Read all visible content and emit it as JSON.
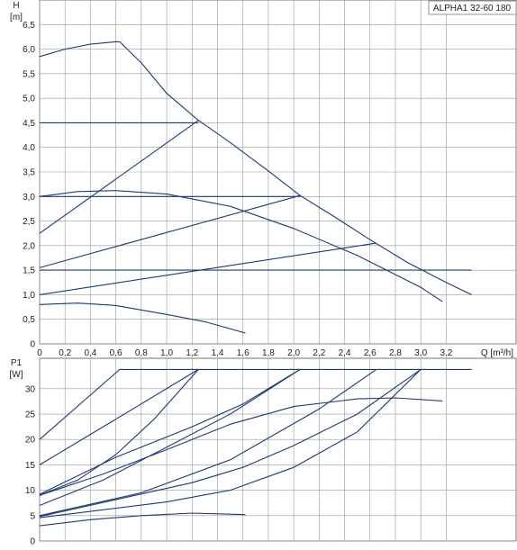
{
  "chart_data": [
    {
      "type": "line",
      "title": "ALPHA1 32-60 180",
      "ylabel_top": "H",
      "ylabel_unit": "[m]",
      "xlabel": "Q [m³/h]",
      "xlim": [
        0,
        3.75
      ],
      "ylim": [
        0,
        7
      ],
      "grid": true,
      "x_ticks": [
        "0",
        "0,2",
        "0,4",
        "0,6",
        "0,8",
        "1,0",
        "1,2",
        "1,4",
        "1,6",
        "1,8",
        "2,0",
        "2,2",
        "2,4",
        "2,6",
        "2,8",
        "3,0",
        "3,2"
      ],
      "x_tick_values": [
        0,
        0.2,
        0.4,
        0.6,
        0.8,
        1.0,
        1.2,
        1.4,
        1.6,
        1.8,
        2.0,
        2.2,
        2.4,
        2.6,
        2.8,
        3.0,
        3.2
      ],
      "y_ticks": [
        "0",
        "0,5",
        "1,0",
        "1,5",
        "2,0",
        "2,5",
        "3,0",
        "3,5",
        "4,0",
        "4,5",
        "5,0",
        "5,5",
        "6,0",
        "6,5"
      ],
      "y_tick_values": [
        0,
        0.5,
        1.0,
        1.5,
        2.0,
        2.5,
        3.0,
        3.5,
        4.0,
        4.5,
        5.0,
        5.5,
        6.0,
        6.5
      ],
      "series": [
        {
          "x": [
            0,
            0.2,
            0.4,
            0.6,
            0.63,
            0.8,
            1.0,
            1.25,
            1.5,
            1.8,
            2.05,
            2.3,
            2.6,
            2.9,
            3.2,
            3.4
          ],
          "y": [
            5.85,
            6.0,
            6.1,
            6.15,
            6.15,
            5.72,
            5.1,
            4.55,
            4.1,
            3.52,
            3.02,
            2.62,
            2.12,
            1.65,
            1.25,
            1.0
          ]
        },
        {
          "x": [
            0,
            1.25
          ],
          "y": [
            4.5,
            4.5
          ]
        },
        {
          "x": [
            0,
            1.25
          ],
          "y": [
            2.25,
            4.55
          ]
        },
        {
          "x": [
            0,
            2.05
          ],
          "y": [
            3.0,
            3.0
          ]
        },
        {
          "x": [
            0,
            2.05
          ],
          "y": [
            1.55,
            3.02
          ]
        },
        {
          "x": [
            0,
            3.4
          ],
          "y": [
            1.5,
            1.5
          ]
        },
        {
          "x": [
            0,
            2.65
          ],
          "y": [
            1.0,
            2.05
          ]
        },
        {
          "x": [
            0,
            0.3,
            0.6,
            1.0,
            1.5,
            2.0,
            2.5,
            3.0,
            3.17
          ],
          "y": [
            3.0,
            3.1,
            3.12,
            3.05,
            2.8,
            2.35,
            1.8,
            1.15,
            0.86
          ]
        },
        {
          "x": [
            0,
            0.3,
            0.6,
            1.0,
            1.3,
            1.62
          ],
          "y": [
            0.8,
            0.83,
            0.78,
            0.6,
            0.45,
            0.22
          ]
        }
      ]
    },
    {
      "type": "line",
      "ylabel_top": "P1",
      "ylabel_unit": "[W]",
      "xlim": [
        0,
        3.75
      ],
      "ylim": [
        0,
        36
      ],
      "grid": true,
      "y_ticks": [
        "0",
        "5",
        "10",
        "15",
        "20",
        "25",
        "30"
      ],
      "y_tick_values": [
        0,
        5,
        10,
        15,
        20,
        25,
        30
      ],
      "series": [
        {
          "x": [
            0.63,
            3.4
          ],
          "y": [
            33.8,
            33.8
          ]
        },
        {
          "x": [
            0,
            0.63
          ],
          "y": [
            20,
            33.8
          ]
        },
        {
          "x": [
            0,
            0.6,
            1.25
          ],
          "y": [
            15,
            24,
            33.8
          ]
        },
        {
          "x": [
            0,
            0.3,
            0.6,
            0.9,
            1.25
          ],
          "y": [
            9.0,
            12.0,
            17.0,
            24.0,
            33.8
          ]
        },
        {
          "x": [
            0,
            0.6,
            1.2,
            1.6,
            2.05
          ],
          "y": [
            9.2,
            16.5,
            22.5,
            27.0,
            33.8
          ]
        },
        {
          "x": [
            0,
            0.5,
            1.0,
            1.5,
            2.05
          ],
          "y": [
            7.0,
            12.0,
            18.5,
            25.0,
            33.8
          ]
        },
        {
          "x": [
            0,
            0.8,
            1.5,
            2.2,
            2.65
          ],
          "y": [
            5.0,
            9.5,
            16.0,
            26.0,
            33.8
          ]
        },
        {
          "x": [
            0,
            1.0,
            1.5,
            2.0,
            2.5,
            3.0
          ],
          "y": [
            4.6,
            7.7,
            10.0,
            14.5,
            21.5,
            33.8
          ]
        },
        {
          "x": [
            0,
            1.2,
            1.6,
            2.0,
            2.5,
            3.0
          ],
          "y": [
            4.8,
            11.5,
            14.5,
            18.8,
            25.0,
            33.8
          ]
        },
        {
          "x": [
            0,
            0.5,
            1.0,
            1.5,
            2.0,
            2.5,
            2.8,
            3.17
          ],
          "y": [
            9.0,
            13.2,
            18.0,
            23.0,
            26.5,
            28.0,
            28.2,
            27.6
          ]
        },
        {
          "x": [
            0,
            0.4,
            0.8,
            1.2,
            1.62
          ],
          "y": [
            3.0,
            4.2,
            5.0,
            5.5,
            5.2
          ]
        }
      ]
    }
  ]
}
